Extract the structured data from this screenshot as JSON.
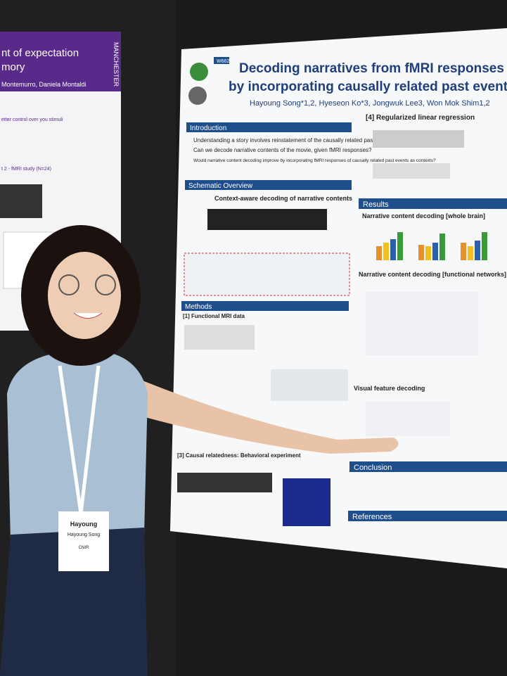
{
  "left_poster": {
    "title": [
      "nt of expectation",
      "mory"
    ],
    "authors": "Montemurro, Daniela Montaldi",
    "logo": "MANCHESTER",
    "subhead": "etter control over you stimuli",
    "section": "t 2 - fMRI study (N=24)"
  },
  "poster": {
    "code": "W662",
    "title": [
      "Decoding narratives from fMRI responses",
      "by incorporating causally related past events"
    ],
    "authors": "Hayoung Song*1,2, Hyeseon Ko*3, Jongwuk Lee3, Won Mok Shim1,2",
    "sections": {
      "introduction": "Introduction",
      "schematic": "Schematic Overview",
      "methods": "Methods",
      "regression": "[4] Regularized linear regression",
      "results": "Results",
      "conclusion": "Conclusion",
      "references": "References"
    },
    "introduction_bullets": [
      "Understanding a story involves reinstatement of the causally related past events.",
      "Can we decode narrative contents of the movie, given fMRI responses?",
      "Would narrative content decoding improve by incorporating fMRI responses of causally related past events as contexts?"
    ],
    "subheads": [
      "Context-aware decoding of narrative contents",
      "[1] Functional MRI data",
      "[3] Causal relatedness: Behavioral experiment",
      "Narrative content decoding [whole brain]",
      "Narrative content decoding [functional networks]",
      "Visual feature decoding"
    ]
  },
  "badge": {
    "first": "Hayoung",
    "full": "Hayoung Song",
    "org": "CNIR"
  }
}
